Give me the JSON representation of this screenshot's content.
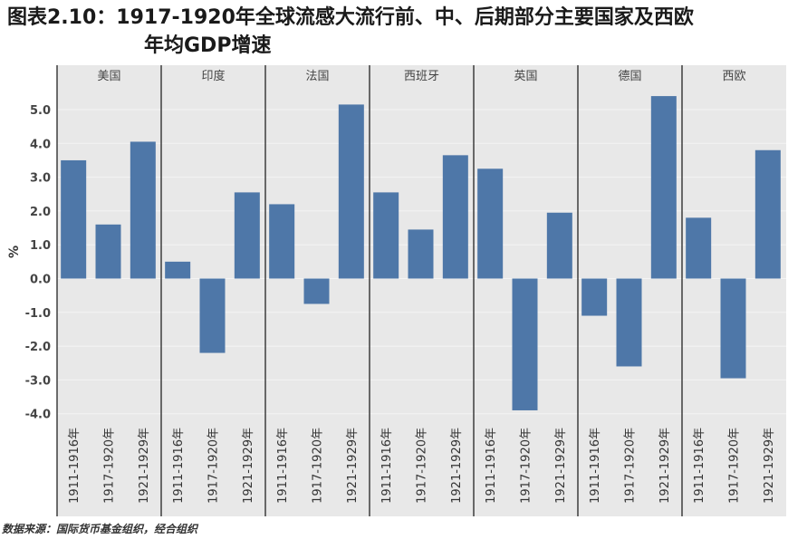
{
  "title_line1": "图表2.10：1917-1920年全球流感大流行前、中、后期部分主要国家及西欧",
  "title_line2": "年均GDP增速",
  "source": "数据来源：国际货币基金组织，经合组织",
  "colors": {
    "bar": "#4e77a8",
    "panel": "#e8e8e8",
    "grid": "#f4f4f4"
  },
  "chart_data": {
    "type": "bar",
    "ylabel": "%",
    "ylim": [
      -4.5,
      6.0
    ],
    "yticks": [
      "5.0",
      "4.0",
      "3.0",
      "2.0",
      "1.0",
      "0.0",
      "-1.0",
      "-2.0",
      "-3.0",
      "-4.0"
    ],
    "categories": [
      "1911-1916年",
      "1917-1920年",
      "1921-1929年"
    ],
    "panels": [
      {
        "name": "美国",
        "values": [
          3.5,
          1.6,
          4.05
        ]
      },
      {
        "name": "印度",
        "values": [
          0.5,
          -2.2,
          2.55
        ]
      },
      {
        "name": "法国",
        "values": [
          2.2,
          -0.75,
          5.15
        ]
      },
      {
        "name": "西班牙",
        "values": [
          2.55,
          1.45,
          3.65
        ]
      },
      {
        "name": "英国",
        "values": [
          3.25,
          -3.9,
          1.95
        ]
      },
      {
        "name": "德国",
        "values": [
          -1.1,
          -2.6,
          5.4
        ]
      },
      {
        "name": "西欧",
        "values": [
          1.8,
          -2.95,
          3.8
        ]
      }
    ]
  }
}
